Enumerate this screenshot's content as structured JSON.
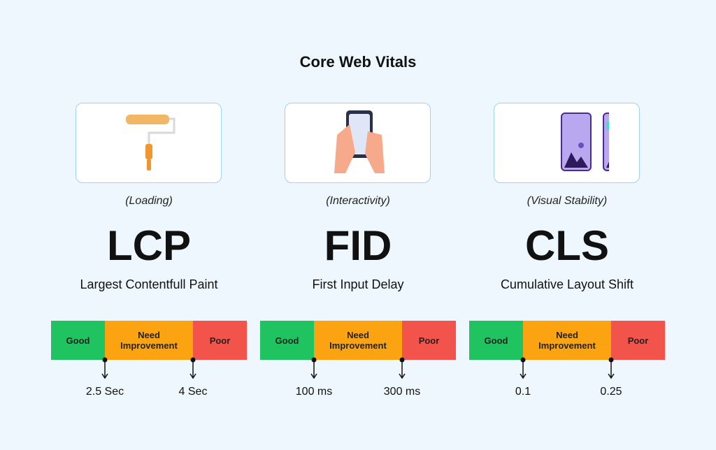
{
  "title": "Core Web Vitals",
  "metrics": [
    {
      "category": "(Loading)",
      "acronym": "LCP",
      "name": "Largest Contentfull Paint",
      "segments": [
        "Good",
        "Need Improvement",
        "Poor"
      ],
      "thresholds": [
        "2.5 Sec",
        "4 Sec"
      ]
    },
    {
      "category": "(Interactivity)",
      "acronym": "FID",
      "name": "First Input Delay",
      "segments": [
        "Good",
        "Need Improvement",
        "Poor"
      ],
      "thresholds": [
        "100 ms",
        "300 ms"
      ]
    },
    {
      "category": "(Visual Stability)",
      "acronym": "CLS",
      "name": "Cumulative Layout Shift",
      "segments": [
        "Good",
        "Need Improvement",
        "Poor"
      ],
      "thresholds": [
        "0.1",
        "0.25"
      ]
    }
  ]
}
